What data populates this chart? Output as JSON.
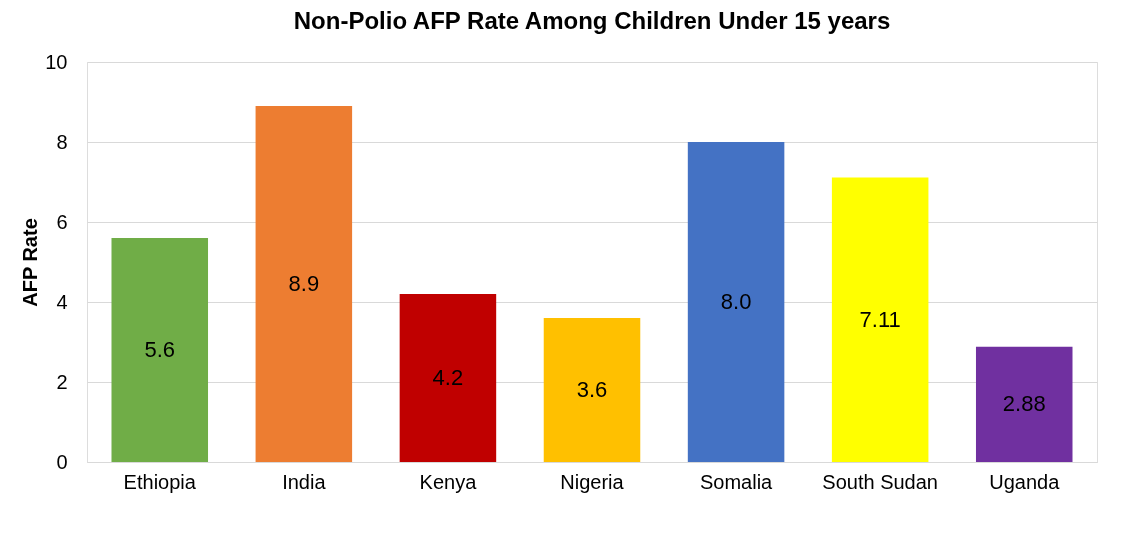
{
  "chart_data": {
    "type": "bar",
    "title": "Non-Polio AFP Rate Among Children Under 15 years",
    "ylabel": "AFP Rate",
    "categories": [
      "Ethiopia",
      "India",
      "Kenya",
      "Nigeria",
      "Somalia",
      "South Sudan",
      "Uganda"
    ],
    "values": [
      5.6,
      8.9,
      4.2,
      3.6,
      8.0,
      7.11,
      2.88
    ],
    "value_labels": [
      "5.6",
      "8.9",
      "4.2",
      "3.6",
      "8.0",
      "7.11",
      "2.88"
    ],
    "colors": [
      "#70ad47",
      "#ed7d31",
      "#c00000",
      "#ffc000",
      "#4472c4",
      "#ffff00",
      "#7030a0"
    ],
    "ylim": [
      0,
      10
    ],
    "yticks": [
      0,
      2,
      4,
      6,
      8,
      10
    ],
    "grid": "y"
  }
}
